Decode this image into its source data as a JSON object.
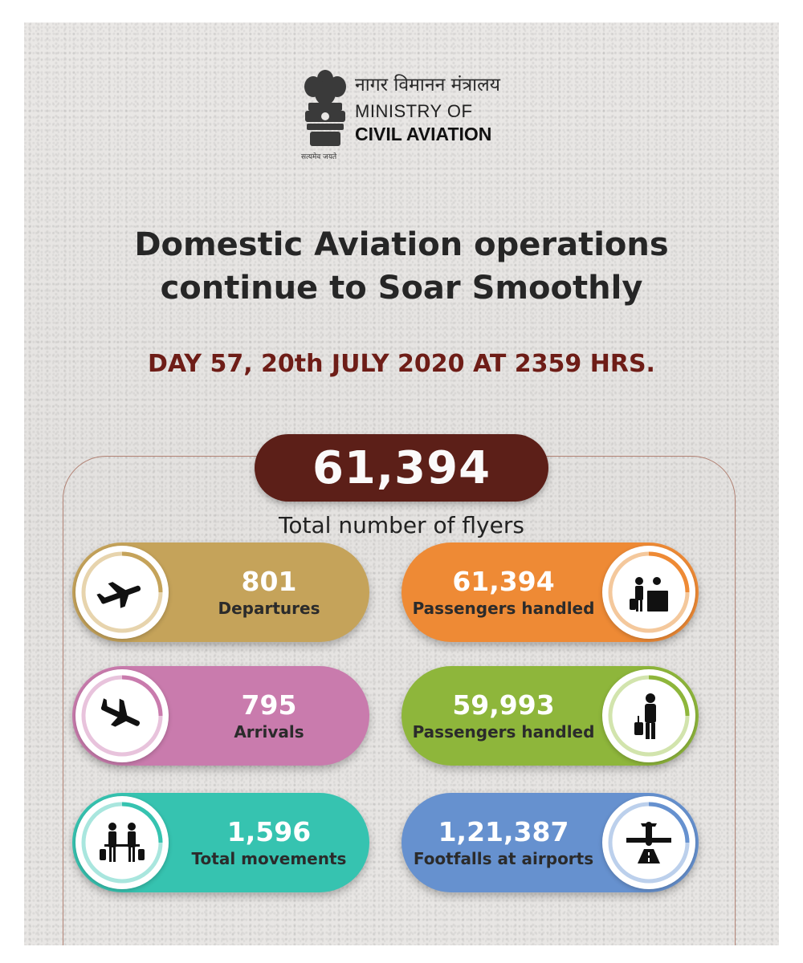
{
  "header": {
    "hindi_name": "नागर विमानन मंत्रालय",
    "ministry_line1": "MINISTRY OF",
    "ministry_line2": "CIVIL AVIATION",
    "emblem_motto": "सत्यमेव जयते"
  },
  "headline": {
    "line1": "Domestic Aviation operations",
    "line2": "continue to Soar Smoothly"
  },
  "dateline": "DAY 57, 20th JULY 2020 AT 2359 HRS.",
  "total": {
    "value": "61,394",
    "label": "Total number of flyers"
  },
  "stats": [
    {
      "value": "801",
      "label": "Departures",
      "color": "#c5a35a",
      "icon": "departure-plane-icon"
    },
    {
      "value": "61,394",
      "label": "Passengers handled",
      "color": "#ee8a35",
      "icon": "check-in-counter-icon"
    },
    {
      "value": "795",
      "label": "Arrivals",
      "color": "#c97bad",
      "icon": "arrival-plane-icon"
    },
    {
      "value": "59,993",
      "label": "Passengers handled",
      "color": "#8eb63b",
      "icon": "traveler-with-luggage-icon"
    },
    {
      "value": "1,596",
      "label": "Total movements",
      "color": "#36c3b0",
      "icon": "people-movement-icon"
    },
    {
      "value": "1,21,387",
      "label": "Footfalls at airports",
      "color": "#6691cf",
      "icon": "plane-on-runway-icon"
    }
  ],
  "colors": {
    "dateline": "#6e1d17",
    "total_pill": "#5c1f18"
  }
}
